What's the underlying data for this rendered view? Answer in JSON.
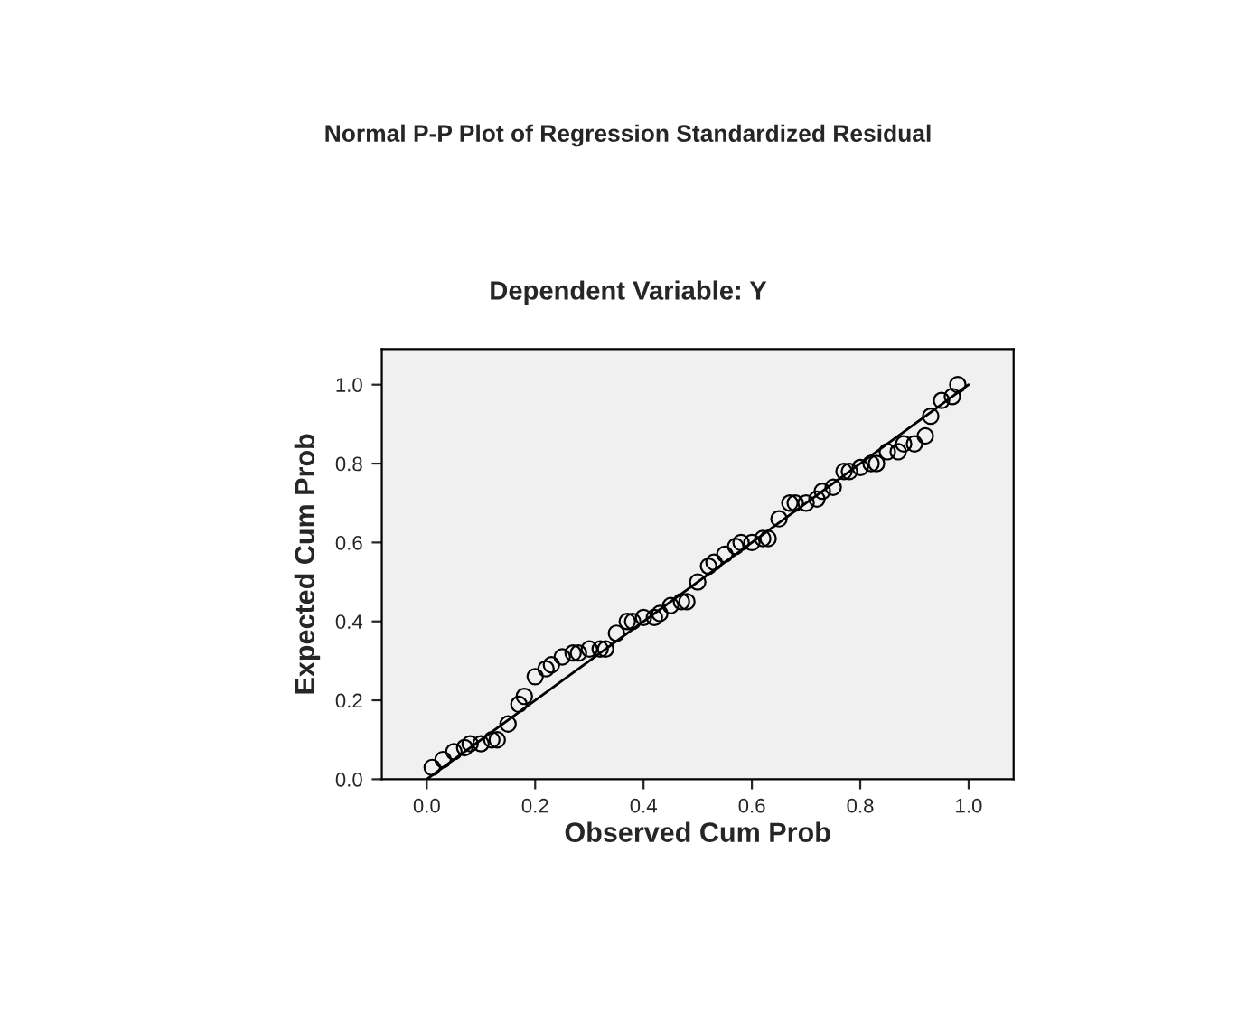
{
  "chart_data": {
    "type": "scatter",
    "title": "Normal P-P Plot of Regression Standardized Residual",
    "subtitle": "Dependent Variable: Y",
    "xlabel": "Observed Cum Prob",
    "ylabel": "Expected Cum Prob",
    "xlim": [
      -0.083,
      1.083
    ],
    "ylim": [
      0.0,
      1.09
    ],
    "xticks": [
      {
        "value": 0,
        "label": "0.0"
      },
      {
        "value": 0.2,
        "label": "0.2"
      },
      {
        "value": 0.4,
        "label": "0.4"
      },
      {
        "value": 0.6,
        "label": "0.6"
      },
      {
        "value": 0.8,
        "label": "0.8"
      },
      {
        "value": 1,
        "label": "1.0"
      }
    ],
    "yticks": [
      {
        "value": 0,
        "label": "0.0"
      },
      {
        "value": 0.2,
        "label": "0.2"
      },
      {
        "value": 0.4,
        "label": "0.4"
      },
      {
        "value": 0.6,
        "label": "0.6"
      },
      {
        "value": 0.8,
        "label": "0.8"
      },
      {
        "value": 1,
        "label": "1.0"
      }
    ],
    "grid": false,
    "legend": false,
    "series": [
      {
        "marker": "circle",
        "color": "#000000",
        "x": [
          0.01,
          0.03,
          0.05,
          0.07,
          0.08,
          0.1,
          0.12,
          0.13,
          0.15,
          0.17,
          0.18,
          0.2,
          0.22,
          0.23,
          0.25,
          0.27,
          0.28,
          0.3,
          0.32,
          0.33,
          0.35,
          0.37,
          0.38,
          0.4,
          0.42,
          0.43,
          0.45,
          0.47,
          0.48,
          0.5,
          0.52,
          0.53,
          0.55,
          0.57,
          0.58,
          0.6,
          0.62,
          0.63,
          0.65,
          0.67,
          0.68,
          0.7,
          0.72,
          0.73,
          0.75,
          0.77,
          0.78,
          0.8,
          0.82,
          0.83,
          0.85,
          0.87,
          0.88,
          0.9,
          0.92,
          0.93,
          0.95,
          0.97,
          0.98
        ],
        "values": [
          0.03,
          0.05,
          0.07,
          0.08,
          0.09,
          0.09,
          0.1,
          0.1,
          0.14,
          0.19,
          0.21,
          0.26,
          0.28,
          0.29,
          0.31,
          0.32,
          0.32,
          0.33,
          0.33,
          0.33,
          0.37,
          0.4,
          0.4,
          0.41,
          0.41,
          0.42,
          0.44,
          0.45,
          0.45,
          0.5,
          0.54,
          0.55,
          0.57,
          0.59,
          0.6,
          0.6,
          0.61,
          0.61,
          0.66,
          0.7,
          0.7,
          0.7,
          0.71,
          0.73,
          0.74,
          0.78,
          0.78,
          0.79,
          0.8,
          0.8,
          0.83,
          0.83,
          0.85,
          0.85,
          0.87,
          0.92,
          0.96,
          0.97,
          1.0
        ]
      },
      {
        "type": "line",
        "marker": "none",
        "color": "#000000",
        "x": [
          0,
          1
        ],
        "values": [
          0,
          1
        ]
      }
    ]
  }
}
